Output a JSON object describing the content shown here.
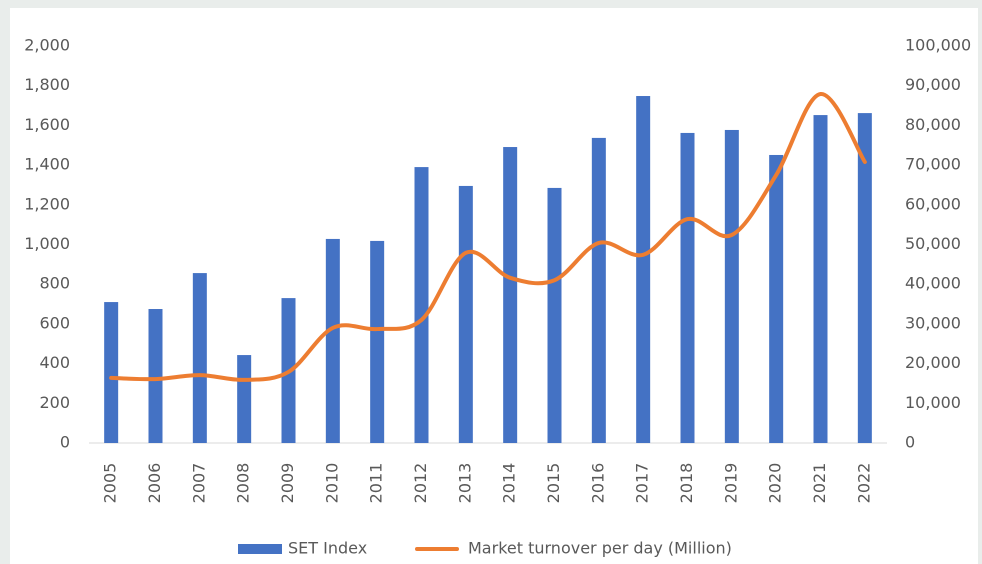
{
  "chart_data": {
    "type": "bar_line",
    "categories": [
      "2005",
      "2006",
      "2007",
      "2008",
      "2009",
      "2010",
      "2011",
      "2012",
      "2013",
      "2014",
      "2015",
      "2016",
      "2017",
      "2018",
      "2019",
      "2020",
      "2021",
      "2022"
    ],
    "series": [
      {
        "name": "SET Index",
        "color": "#4472c4",
        "type": "bar",
        "axis": "y",
        "values": [
          710,
          675,
          856,
          443,
          730,
          1028,
          1018,
          1390,
          1295,
          1491,
          1285,
          1537,
          1748,
          1562,
          1577,
          1451,
          1652,
          1662
        ]
      },
      {
        "name": "Market turnover per day (Million)",
        "color": "#ed7d31",
        "type": "line",
        "axis": "y2",
        "values": [
          16400,
          16100,
          17100,
          15900,
          17900,
          29000,
          28700,
          31000,
          47900,
          41600,
          41000,
          50400,
          47400,
          56400,
          52400,
          67500,
          87900,
          70800
        ]
      }
    ],
    "ylim": [
      0,
      2000
    ],
    "yticks": [
      0,
      200,
      400,
      600,
      800,
      {
        "value": 1000,
        "label": "1,000"
      },
      {
        "value": 1200,
        "label": "1,200"
      },
      {
        "value": 1400,
        "label": "1,400"
      },
      {
        "value": 1600,
        "label": "1,600"
      },
      {
        "value": 1800,
        "label": "1,800"
      },
      {
        "value": 2000,
        "label": "2,000"
      }
    ],
    "y2lim": [
      0,
      100000
    ],
    "y2ticks": [
      0,
      {
        "value": 10000,
        "label": "10,000"
      },
      {
        "value": 20000,
        "label": "20,000"
      },
      {
        "value": 30000,
        "label": "30,000"
      },
      {
        "value": 40000,
        "label": "40,000"
      },
      {
        "value": 50000,
        "label": "50,000"
      },
      {
        "value": 60000,
        "label": "60,000"
      },
      {
        "value": 70000,
        "label": "70,000"
      },
      {
        "value": 80000,
        "label": "80,000"
      },
      {
        "value": 90000,
        "label": "90,000"
      },
      {
        "value": 100000,
        "label": "100,000"
      }
    ],
    "legend": "bottom"
  }
}
